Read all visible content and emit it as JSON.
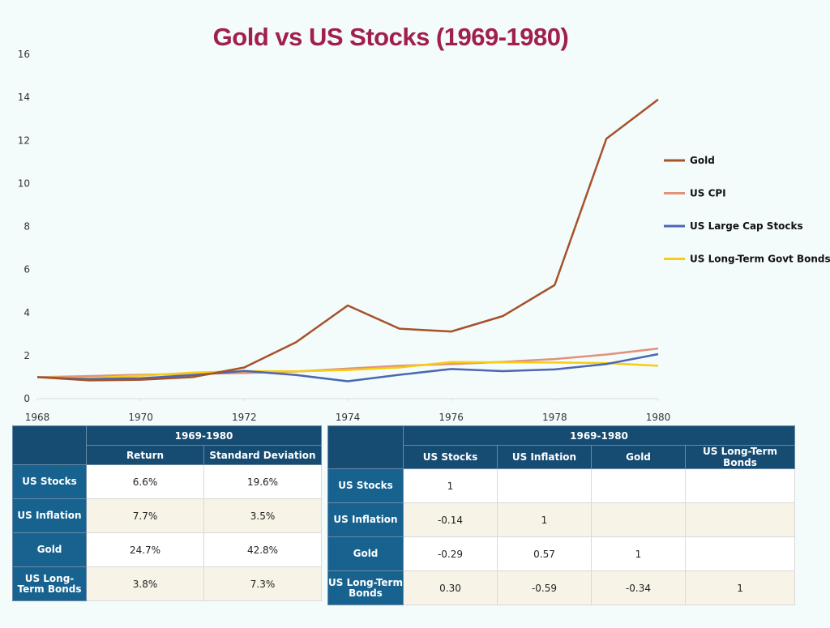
{
  "chart_data": {
    "type": "line",
    "title": "Gold vs US Stocks (1969-1980)",
    "xlabel": "",
    "ylabel": "",
    "x": [
      1968,
      1969,
      1970,
      1971,
      1972,
      1973,
      1974,
      1975,
      1976,
      1977,
      1978,
      1979,
      1980
    ],
    "xlim": [
      1968,
      1980
    ],
    "ylim": [
      0,
      16
    ],
    "x_ticks": [
      1968,
      1970,
      1972,
      1974,
      1976,
      1978,
      1980
    ],
    "y_ticks": [
      0,
      2,
      4,
      6,
      8,
      10,
      12,
      14,
      16
    ],
    "grid": false,
    "legend_position": "right",
    "series": [
      {
        "name": "Gold",
        "color": "#a5522a",
        "values": [
          1.0,
          0.85,
          0.88,
          1.0,
          1.45,
          2.62,
          4.33,
          3.25,
          3.12,
          3.84,
          5.28,
          12.08,
          13.9
        ]
      },
      {
        "name": "US CPI",
        "color": "#e2917c",
        "values": [
          1.0,
          1.05,
          1.11,
          1.15,
          1.19,
          1.26,
          1.4,
          1.53,
          1.61,
          1.71,
          1.84,
          2.05,
          2.33
        ]
      },
      {
        "name": "US Large Cap Stocks",
        "color": "#4b67b3",
        "values": [
          1.0,
          0.91,
          0.95,
          1.09,
          1.29,
          1.1,
          0.81,
          1.11,
          1.38,
          1.28,
          1.36,
          1.61,
          2.07
        ]
      },
      {
        "name": "US Long-Term Govt Bonds",
        "color": "#f5cd12",
        "values": [
          1.0,
          0.95,
          1.07,
          1.21,
          1.28,
          1.27,
          1.33,
          1.45,
          1.7,
          1.69,
          1.68,
          1.65,
          1.53
        ]
      }
    ]
  },
  "stats_table": {
    "period": "1969-1980",
    "columns": [
      "Return",
      "Standard Deviation"
    ],
    "rows": [
      {
        "label": "US Stocks",
        "values": [
          "6.6%",
          "19.6%"
        ]
      },
      {
        "label": "US Inflation",
        "values": [
          "7.7%",
          "3.5%"
        ]
      },
      {
        "label": "Gold",
        "values": [
          "24.7%",
          "42.8%"
        ]
      },
      {
        "label": "US Long-Term Bonds",
        "values": [
          "3.8%",
          "7.3%"
        ]
      }
    ]
  },
  "correlation_table": {
    "period": "1969-1980",
    "columns": [
      "US Stocks",
      "US Inflation",
      "Gold",
      "US Long-Term Bonds"
    ],
    "rows": [
      {
        "label": "US Stocks",
        "values": [
          "1",
          "",
          "",
          ""
        ]
      },
      {
        "label": "US Inflation",
        "values": [
          "-0.14",
          "1",
          "",
          ""
        ]
      },
      {
        "label": "Gold",
        "values": [
          "-0.29",
          "0.57",
          "1",
          ""
        ]
      },
      {
        "label": "US Long-Term Bonds",
        "values": [
          "0.30",
          "-0.59",
          "-0.34",
          "1"
        ]
      }
    ]
  }
}
